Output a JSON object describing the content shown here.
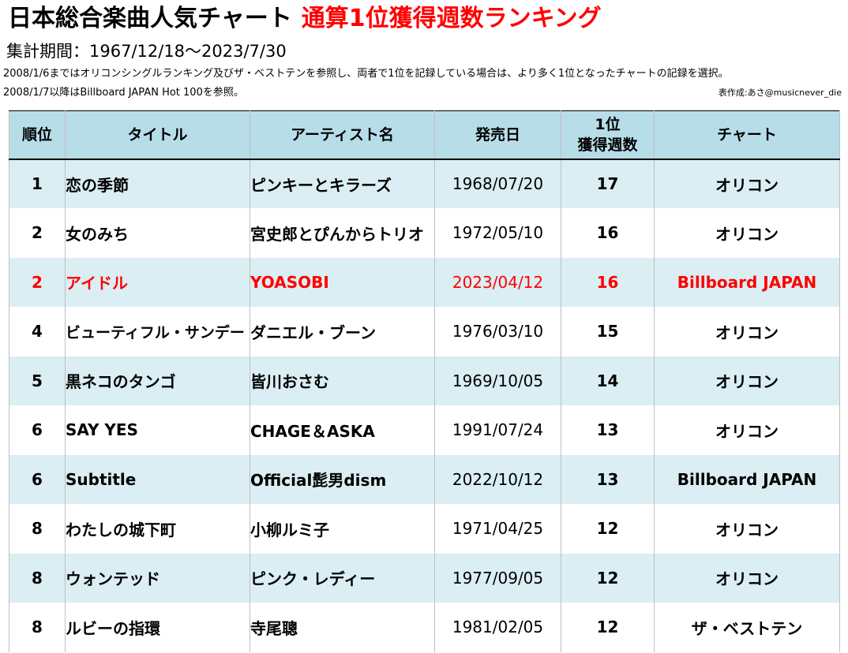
{
  "header": {
    "title": "日本総合楽曲人気チャート",
    "title_accent": "通算1位獲得週数ランキング",
    "accent_color": "#ff0000",
    "period_label": "集計期間：",
    "period_range": "1967/12/18～2023/7/30",
    "note_1": "2008/1/6まではオリコンシングルランキング及びザ・ベストテンを参照し、両者で1位を記録している場合は、より多く1位となったチャートの記録を選択。",
    "note_2": "2008/1/7以降はBillboard JAPAN Hot 100を参照。",
    "credit": "表作成:あさ@musicnever_die"
  },
  "table": {
    "columns": {
      "rank": "順位",
      "title": "タイトル",
      "artist": "アーティスト名",
      "date": "発売日",
      "weeks_line1": "1位",
      "weeks_line2": "獲得週数",
      "chart": "チャート"
    },
    "header_bg": "#b7dde8",
    "odd_row_bg": "#daeef3",
    "even_row_bg": "#ffffff",
    "highlight_color": "#ff0000",
    "rows": [
      {
        "rank": "1",
        "title": "恋の季節",
        "artist": "ピンキーとキラーズ",
        "date": "1968/07/20",
        "weeks": "17",
        "chart": "オリコン",
        "highlight": false
      },
      {
        "rank": "2",
        "title": "女のみち",
        "artist": "宮史郎とぴんからトリオ",
        "date": "1972/05/10",
        "weeks": "16",
        "chart": "オリコン",
        "highlight": false
      },
      {
        "rank": "2",
        "title": "アイドル",
        "artist": "YOASOBI",
        "date": "2023/04/12",
        "weeks": "16",
        "chart": "Billboard JAPAN",
        "highlight": true
      },
      {
        "rank": "4",
        "title": "ビューティフル・サンデー",
        "artist": "ダニエル・ブーン",
        "date": "1976/03/10",
        "weeks": "15",
        "chart": "オリコン",
        "highlight": false
      },
      {
        "rank": "5",
        "title": "黒ネコのタンゴ",
        "artist": "皆川おさむ",
        "date": "1969/10/05",
        "weeks": "14",
        "chart": "オリコン",
        "highlight": false
      },
      {
        "rank": "6",
        "title": "SAY YES",
        "artist": "CHAGE＆ASKA",
        "date": "1991/07/24",
        "weeks": "13",
        "chart": "オリコン",
        "highlight": false
      },
      {
        "rank": "6",
        "title": "Subtitle",
        "artist": "Official髭男dism",
        "date": "2022/10/12",
        "weeks": "13",
        "chart": "Billboard JAPAN",
        "highlight": false
      },
      {
        "rank": "8",
        "title": "わたしの城下町",
        "artist": "小柳ルミ子",
        "date": "1971/04/25",
        "weeks": "12",
        "chart": "オリコン",
        "highlight": false
      },
      {
        "rank": "8",
        "title": "ウォンテッド",
        "artist": "ピンク・レディー",
        "date": "1977/09/05",
        "weeks": "12",
        "chart": "オリコン",
        "highlight": false
      },
      {
        "rank": "8",
        "title": "ルビーの指環",
        "artist": "寺尾聰",
        "date": "1981/02/05",
        "weeks": "12",
        "chart": "ザ・ベストテン",
        "highlight": false
      }
    ]
  }
}
